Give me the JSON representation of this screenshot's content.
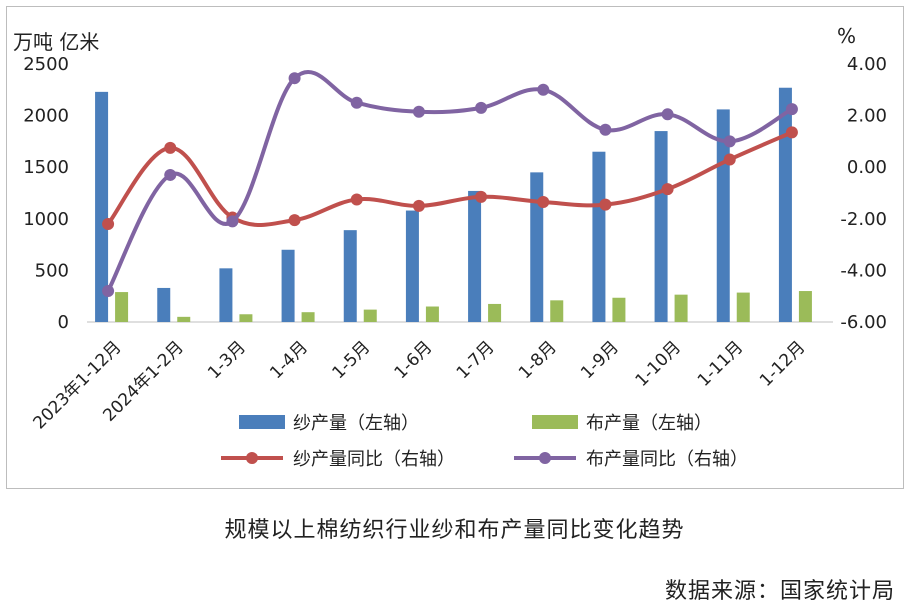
{
  "chart_data": {
    "type": "bar+line",
    "title": "规模以上棉纺织行业纱和布产量同比变化趋势",
    "source": "数据来源：国家统计局",
    "left_axis_unit": "万吨 亿米",
    "right_axis_unit": "%",
    "categories": [
      "2023年1-12月",
      "2024年1-2月",
      "1-3月",
      "1-4月",
      "1-5月",
      "1-6月",
      "1-7月",
      "1-8月",
      "1-9月",
      "1-10月",
      "1-11月",
      "1-12月"
    ],
    "left_axis": {
      "min": 0,
      "max": 2500,
      "ticks": [
        "0",
        "500",
        "1000",
        "1500",
        "2000",
        "2500"
      ]
    },
    "right_axis": {
      "min": -6,
      "max": 4,
      "ticks": [
        "-6.00",
        "-4.00",
        "-2.00",
        "0.00",
        "2.00",
        "4.00"
      ]
    },
    "bar_series": [
      {
        "name": "纱产量（左轴）",
        "color": "#4a7ebb",
        "values": [
          2230,
          330,
          520,
          700,
          890,
          1080,
          1270,
          1450,
          1650,
          1850,
          2060,
          2270
        ]
      },
      {
        "name": "布产量（左轴）",
        "color": "#9bbb59",
        "values": [
          290,
          50,
          75,
          95,
          120,
          150,
          175,
          210,
          235,
          265,
          285,
          300
        ]
      }
    ],
    "line_series": [
      {
        "name": "纱产量同比（右轴）",
        "color": "#c0504d",
        "values": [
          -2.2,
          0.75,
          -1.95,
          -2.05,
          -1.25,
          -1.5,
          -1.15,
          -1.35,
          -1.45,
          -0.85,
          0.3,
          1.35
        ]
      },
      {
        "name": "布产量同比（右轴）",
        "color": "#8064a2",
        "values": [
          -4.8,
          -0.3,
          -2.1,
          3.45,
          2.5,
          2.15,
          2.3,
          3.0,
          1.45,
          2.05,
          1.0,
          2.25
        ]
      }
    ],
    "legend_position": "bottom",
    "grid": false
  }
}
